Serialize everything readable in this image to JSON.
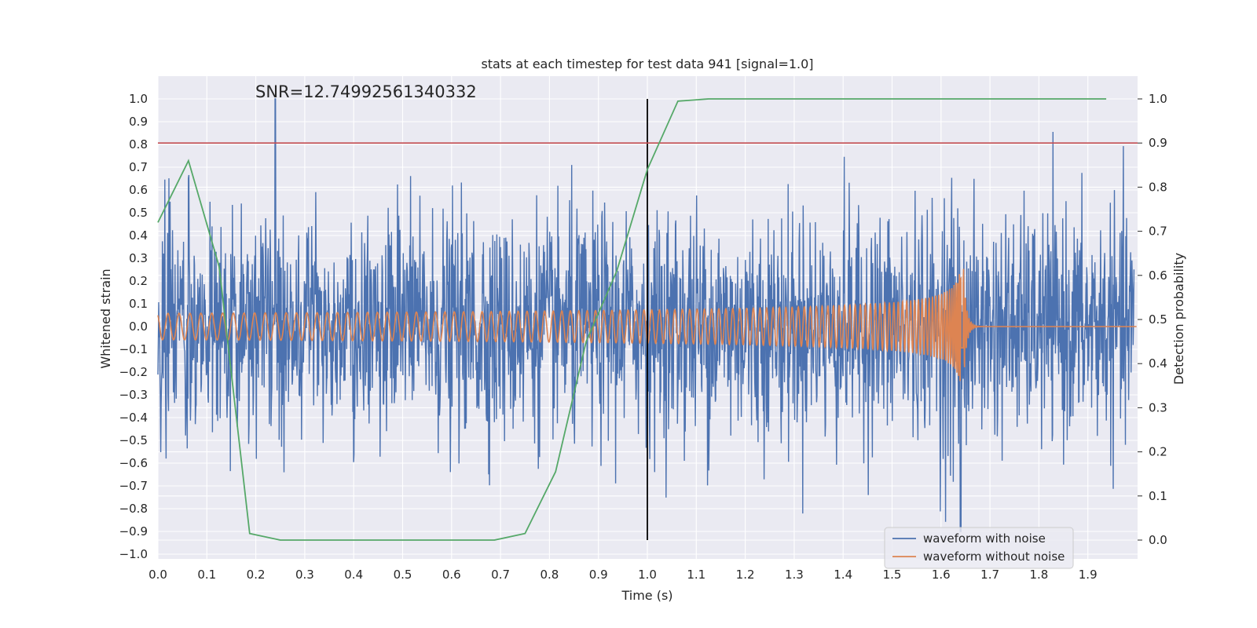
{
  "chart_data": {
    "type": "line",
    "title": "stats at each timestep for test data 941 [signal=1.0]",
    "xlabel": "Time (s)",
    "ylabel": "Whitened strain",
    "y2label": "Detection probability",
    "xlim": [
      0.0,
      2.0
    ],
    "ylim": [
      -1.05,
      1.05
    ],
    "y2lim": [
      -0.045,
      1.045
    ],
    "xticks": [
      "0.0",
      "0.1",
      "0.2",
      "0.3",
      "0.4",
      "0.5",
      "0.6",
      "0.7",
      "0.8",
      "0.9",
      "1.0",
      "1.1",
      "1.2",
      "1.3",
      "1.4",
      "1.5",
      "1.6",
      "1.7",
      "1.8",
      "1.9"
    ],
    "yticks": [
      "1.0",
      "0.9",
      "0.8",
      "0.7",
      "0.6",
      "0.5",
      "0.4",
      "0.3",
      "0.2",
      "0.1",
      "0.0",
      "−0.1",
      "−0.2",
      "−0.3",
      "−0.4",
      "−0.5",
      "−0.6",
      "−0.7",
      "−0.8",
      "−0.9",
      "−1.0"
    ],
    "y2ticks": [
      "1.0",
      "0.9",
      "0.8",
      "0.7",
      "0.6",
      "0.5",
      "0.4",
      "0.3",
      "0.2",
      "0.1",
      "0.0"
    ],
    "annotation": "SNR=12.74992561340332",
    "threshold": 0.9,
    "marker_x": 1.0,
    "series": [
      {
        "name": "waveform with noise",
        "color": "#4c72b0",
        "description": "whitened strain with noise, dense random signal roughly within ±0.8, peaks up to 1.0"
      },
      {
        "name": "waveform without noise",
        "color": "#dd8452",
        "description": "chirp signal: amplitude ~0.06 growing to ~0.35 with rising frequency, merger near t=1.64 s then ringdown to 0"
      },
      {
        "name": "detection probability",
        "color": "#55a868",
        "x": [
          0.0,
          0.0625,
          0.125,
          0.1875,
          0.25,
          0.3125,
          0.375,
          0.4375,
          0.5,
          0.5625,
          0.625,
          0.6875,
          0.75,
          0.8125,
          0.875,
          0.9375,
          1.0,
          1.0625,
          1.125,
          1.1875,
          1.25,
          1.3125,
          1.375,
          1.4375,
          1.5,
          1.5625,
          1.625,
          1.6875,
          1.75,
          1.8125,
          1.875,
          1.9375
        ],
        "values": [
          0.72,
          0.86,
          0.62,
          0.015,
          0.0,
          0.0,
          0.0,
          0.0,
          0.0,
          0.0,
          0.0,
          0.0,
          0.015,
          0.155,
          0.45,
          0.61,
          0.84,
          0.995,
          1.0,
          1.0,
          1.0,
          1.0,
          1.0,
          1.0,
          1.0,
          1.0,
          1.0,
          1.0,
          1.0,
          1.0,
          1.0,
          1.0
        ]
      },
      {
        "name": "threshold",
        "color": "#c44e52",
        "values": [
          0.9
        ]
      }
    ],
    "legend": [
      "waveform with noise",
      "waveform without noise"
    ],
    "legend_position": "lower-right",
    "grid": true
  }
}
